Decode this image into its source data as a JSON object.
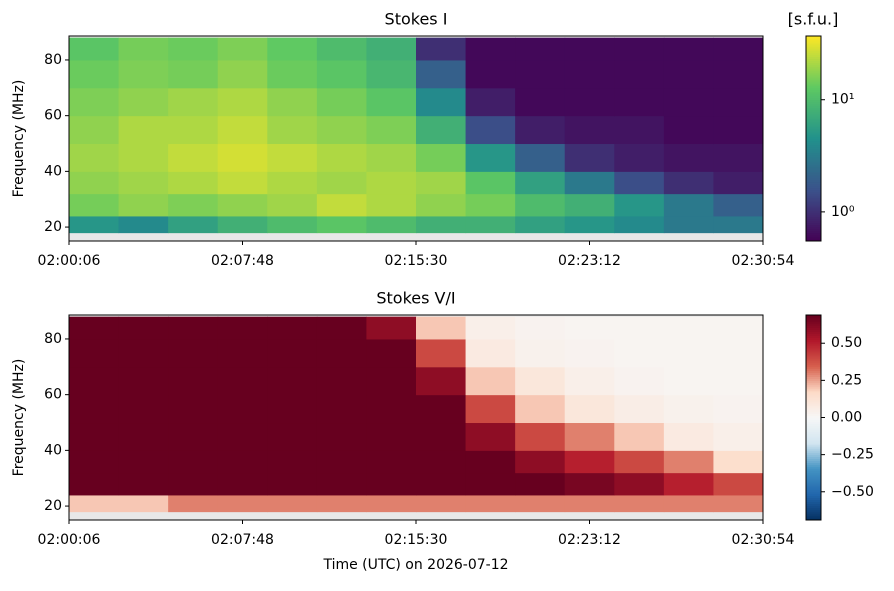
{
  "chart_data": [
    {
      "type": "heatmap",
      "title": "Stokes I",
      "y_label": "Frequency (MHz)",
      "colorbar_label": "[s.f.u.]",
      "x": [
        "02:00:06",
        "02:02:18",
        "02:04:30",
        "02:06:42",
        "02:08:54",
        "02:11:06",
        "02:13:18",
        "02:15:30",
        "02:17:42",
        "02:19:54",
        "02:22:06",
        "02:24:18",
        "02:26:30",
        "02:28:42",
        "02:30:54"
      ],
      "y": [
        15,
        18,
        24,
        32,
        40,
        50,
        60,
        70,
        80,
        88
      ],
      "z": [
        [
          null,
          null,
          null,
          null,
          null,
          null,
          null,
          null,
          null,
          null,
          null,
          null,
          null,
          null
        ],
        [
          5,
          4,
          6,
          8,
          10,
          12,
          10,
          8,
          8,
          6,
          5,
          4,
          3,
          3
        ],
        [
          15,
          18,
          16,
          18,
          20,
          25,
          22,
          18,
          15,
          10,
          8,
          5,
          3,
          2
        ],
        [
          18,
          20,
          22,
          25,
          22,
          20,
          22,
          20,
          12,
          6,
          3,
          1.5,
          1,
          0.8
        ],
        [
          20,
          22,
          25,
          28,
          25,
          22,
          20,
          15,
          5,
          2,
          1,
          0.8,
          0.7,
          0.7
        ],
        [
          18,
          22,
          22,
          25,
          20,
          18,
          16,
          8,
          1.5,
          0.8,
          0.7,
          0.7,
          0.6,
          0.6
        ],
        [
          16,
          18,
          20,
          22,
          18,
          15,
          12,
          4,
          0.8,
          0.6,
          0.6,
          0.6,
          0.6,
          0.6
        ],
        [
          14,
          16,
          15,
          18,
          14,
          12,
          9,
          2,
          0.6,
          0.6,
          0.6,
          0.6,
          0.6,
          0.6
        ],
        [
          12,
          15,
          14,
          16,
          13,
          10,
          8,
          1,
          0.6,
          0.6,
          0.6,
          0.6,
          0.6,
          0.6
        ]
      ],
      "xlim": [
        "02:00:06",
        "02:30:54"
      ],
      "xticks": [
        "02:00:06",
        "02:07:48",
        "02:15:30",
        "02:23:12",
        "02:30:54"
      ],
      "ylim": [
        15,
        88.6
      ],
      "yticks": [
        20,
        40,
        60,
        80
      ],
      "colormap": "viridis",
      "log_scale": true,
      "clim": [
        0.55,
        37
      ],
      "cticks": [
        {
          "value": 1,
          "label": "10⁰"
        },
        {
          "value": 10,
          "label": "10¹"
        }
      ]
    },
    {
      "type": "heatmap",
      "title": "Stokes V/I",
      "y_label": "Frequency (MHz)",
      "x_label": "Time (UTC) on 2026-07-12",
      "x": [
        "02:00:06",
        "02:02:18",
        "02:04:30",
        "02:06:42",
        "02:08:54",
        "02:11:06",
        "02:13:18",
        "02:15:30",
        "02:17:42",
        "02:19:54",
        "02:22:06",
        "02:24:18",
        "02:26:30",
        "02:28:42",
        "02:30:54"
      ],
      "y": [
        15,
        18,
        24,
        32,
        40,
        50,
        60,
        70,
        80,
        88
      ],
      "z": [
        [
          null,
          null,
          null,
          null,
          null,
          null,
          null,
          null,
          null,
          null,
          null,
          null,
          null,
          null
        ],
        [
          0.2,
          0.2,
          0.3,
          0.3,
          0.3,
          0.3,
          0.3,
          0.3,
          0.3,
          0.3,
          0.3,
          0.3,
          0.3,
          0.3
        ],
        [
          0.7,
          0.7,
          0.7,
          0.7,
          0.7,
          0.7,
          0.7,
          0.7,
          0.7,
          0.7,
          0.65,
          0.6,
          0.5,
          0.4
        ],
        [
          0.7,
          0.7,
          0.7,
          0.7,
          0.7,
          0.7,
          0.7,
          0.7,
          0.7,
          0.6,
          0.5,
          0.4,
          0.3,
          0.15
        ],
        [
          0.7,
          0.7,
          0.7,
          0.7,
          0.7,
          0.7,
          0.7,
          0.7,
          0.6,
          0.4,
          0.3,
          0.2,
          0.08,
          0.05
        ],
        [
          0.7,
          0.7,
          0.7,
          0.7,
          0.7,
          0.7,
          0.7,
          0.7,
          0.4,
          0.2,
          0.1,
          0.06,
          0.04,
          0.03
        ],
        [
          0.7,
          0.7,
          0.7,
          0.7,
          0.7,
          0.7,
          0.7,
          0.6,
          0.2,
          0.1,
          0.05,
          0.03,
          0.02,
          0.02
        ],
        [
          0.7,
          0.7,
          0.7,
          0.7,
          0.7,
          0.7,
          0.7,
          0.4,
          0.08,
          0.04,
          0.03,
          0.02,
          0.02,
          0.02
        ],
        [
          0.7,
          0.7,
          0.7,
          0.7,
          0.7,
          0.7,
          0.6,
          0.2,
          0.05,
          0.03,
          0.02,
          0.02,
          0.02,
          0.02
        ]
      ],
      "xlim": [
        "02:00:06",
        "02:30:54"
      ],
      "xticks": [
        "02:00:06",
        "02:07:48",
        "02:15:30",
        "02:23:12",
        "02:30:54"
      ],
      "ylim": [
        15,
        88.6
      ],
      "yticks": [
        20,
        40,
        60,
        80
      ],
      "colormap": "RdBu_r",
      "log_scale": false,
      "clim": [
        -0.69,
        0.69
      ],
      "cticks": [
        {
          "value": -0.5,
          "label": "−0.50"
        },
        {
          "value": -0.25,
          "label": "−0.25"
        },
        {
          "value": 0,
          "label": "0.00"
        },
        {
          "value": 0.25,
          "label": "0.25"
        },
        {
          "value": 0.5,
          "label": "0.50"
        }
      ]
    }
  ]
}
